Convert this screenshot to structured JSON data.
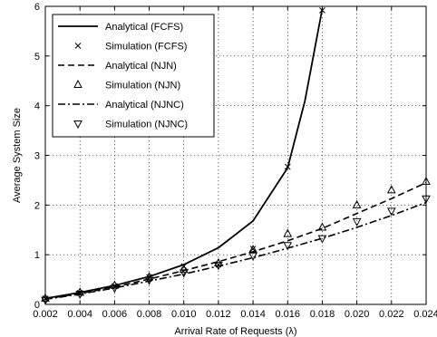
{
  "chart_data": {
    "type": "line",
    "title": "",
    "xlabel": "Arrival Rate of Requests (λ)",
    "ylabel": "Average System Size",
    "xlim": [
      0.002,
      0.024
    ],
    "ylim": [
      0,
      6
    ],
    "xticks": [
      "0.002",
      "0.004",
      "0.006",
      "0.008",
      "0.010",
      "0.012",
      "0.014",
      "0.016",
      "0.018",
      "0.020",
      "0.022",
      "0.024"
    ],
    "yticks": [
      "0",
      "1",
      "2",
      "3",
      "4",
      "5",
      "6"
    ],
    "xtick_values": [
      0.002,
      0.004,
      0.006,
      0.008,
      0.01,
      0.012,
      0.014,
      0.016,
      0.018,
      0.02,
      0.022,
      0.024
    ],
    "ytick_values": [
      0,
      1,
      2,
      3,
      4,
      5,
      6
    ],
    "grid": true,
    "legend_position": "top-left",
    "series": [
      {
        "name": "Analytical (FCFS)",
        "style": "solid",
        "marker": "none",
        "x": [
          0.002,
          0.004,
          0.006,
          0.008,
          0.01,
          0.012,
          0.014,
          0.016,
          0.017,
          0.018
        ],
        "y": [
          0.12,
          0.24,
          0.38,
          0.56,
          0.8,
          1.14,
          1.68,
          2.75,
          4.1,
          5.95
        ]
      },
      {
        "name": "Simulation (FCFS)",
        "style": "none",
        "marker": "x",
        "x": [
          0.002,
          0.004,
          0.006,
          0.008,
          0.01,
          0.012,
          0.014,
          0.016,
          0.018
        ],
        "y": [
          0.12,
          0.23,
          0.37,
          0.55,
          0.77,
          0.8,
          1.12,
          2.77,
          5.92
        ]
      },
      {
        "name": "Analytical (NJN)",
        "style": "dashed",
        "marker": "none",
        "x": [
          0.002,
          0.004,
          0.006,
          0.008,
          0.01,
          0.012,
          0.014,
          0.016,
          0.018,
          0.02,
          0.022,
          0.024
        ],
        "y": [
          0.11,
          0.22,
          0.35,
          0.51,
          0.68,
          0.86,
          1.06,
          1.28,
          1.53,
          1.83,
          2.13,
          2.45
        ]
      },
      {
        "name": "Simulation (NJN)",
        "style": "none",
        "marker": "triangle-up",
        "x": [
          0.002,
          0.004,
          0.006,
          0.008,
          0.01,
          0.012,
          0.014,
          0.016,
          0.018,
          0.02,
          0.022,
          0.024
        ],
        "y": [
          0.12,
          0.24,
          0.38,
          0.55,
          0.7,
          0.83,
          1.1,
          1.42,
          1.55,
          2.0,
          2.3,
          2.47
        ]
      },
      {
        "name": "Analytical (NJNC)",
        "style": "dashdot",
        "marker": "none",
        "x": [
          0.002,
          0.004,
          0.006,
          0.008,
          0.01,
          0.012,
          0.014,
          0.016,
          0.018,
          0.02,
          0.022,
          0.024
        ],
        "y": [
          0.1,
          0.21,
          0.33,
          0.47,
          0.61,
          0.77,
          0.94,
          1.13,
          1.33,
          1.55,
          1.79,
          2.05
        ]
      },
      {
        "name": "Simulation (NJNC)",
        "style": "none",
        "marker": "triangle-down",
        "x": [
          0.002,
          0.004,
          0.006,
          0.008,
          0.01,
          0.012,
          0.014,
          0.016,
          0.018,
          0.02,
          0.022,
          0.024
        ],
        "y": [
          0.09,
          0.21,
          0.33,
          0.49,
          0.64,
          0.79,
          0.98,
          1.19,
          1.33,
          1.67,
          1.88,
          2.13
        ]
      }
    ]
  }
}
